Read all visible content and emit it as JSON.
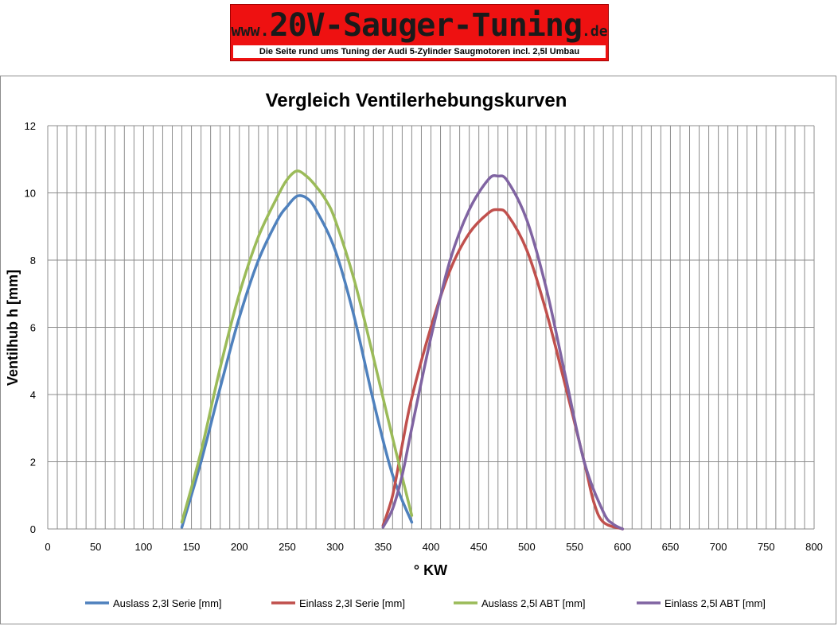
{
  "banner": {
    "www": "www.",
    "name": "20V-Sauger-Tuning",
    "tld": ".de",
    "subtitle": "Die Seite rund ums  Tuning der Audi 5-Zylinder Saugmotoren incl. 2,5l Umbau"
  },
  "chart_data": {
    "type": "line",
    "title": "Vergleich Ventilerhebungskurven",
    "xlabel": "° KW",
    "ylabel": "Ventilhub h  [mm]",
    "xlim": [
      0,
      800
    ],
    "ylim": [
      0,
      12
    ],
    "xticks": [
      "0",
      "50",
      "100",
      "150",
      "200",
      "250",
      "300",
      "350",
      "400",
      "450",
      "500",
      "550",
      "600",
      "650",
      "700",
      "750",
      "800"
    ],
    "yticks": [
      "0",
      "2",
      "4",
      "6",
      "8",
      "10",
      "12"
    ],
    "grid": true,
    "minor_x_grid_step": 10,
    "legend_position": "bottom",
    "series": [
      {
        "name": "Auslass  2,3l Serie [mm]",
        "color": "#4f81bd",
        "x": [
          140,
          160,
          180,
          200,
          220,
          240,
          250,
          260,
          270,
          280,
          300,
          320,
          340,
          360,
          380
        ],
        "y": [
          0.05,
          2.0,
          4.2,
          6.3,
          8.0,
          9.2,
          9.6,
          9.9,
          9.85,
          9.5,
          8.3,
          6.3,
          3.8,
          1.6,
          0.2
        ]
      },
      {
        "name": "Einlass  2,3l Serie [mm]",
        "color": "#c0504d",
        "x": [
          350,
          360,
          370,
          380,
          400,
          420,
          440,
          460,
          470,
          480,
          500,
          520,
          540,
          560,
          570,
          580,
          600
        ],
        "y": [
          0.1,
          1.0,
          2.5,
          3.9,
          6.0,
          7.7,
          8.8,
          9.4,
          9.5,
          9.35,
          8.3,
          6.5,
          4.3,
          2.0,
          0.8,
          0.2,
          0.0
        ]
      },
      {
        "name": "Auslass  2,5l ABT [mm]",
        "color": "#9bbb59",
        "x": [
          140,
          160,
          180,
          200,
          220,
          240,
          250,
          260,
          270,
          280,
          290,
          300,
          320,
          340,
          360,
          380
        ],
        "y": [
          0.2,
          2.3,
          4.8,
          7.0,
          8.7,
          9.9,
          10.4,
          10.65,
          10.5,
          10.2,
          9.8,
          9.2,
          7.4,
          5.1,
          2.7,
          0.4
        ]
      },
      {
        "name": "Einlass  2,5l ABT [mm]",
        "color": "#8064a2",
        "x": [
          350,
          360,
          370,
          380,
          400,
          420,
          440,
          460,
          470,
          480,
          500,
          520,
          540,
          560,
          580,
          590,
          600
        ],
        "y": [
          0.05,
          0.6,
          1.6,
          3.0,
          5.7,
          8.0,
          9.5,
          10.4,
          10.5,
          10.35,
          9.2,
          7.2,
          4.6,
          2.0,
          0.5,
          0.15,
          0.0
        ]
      }
    ]
  }
}
